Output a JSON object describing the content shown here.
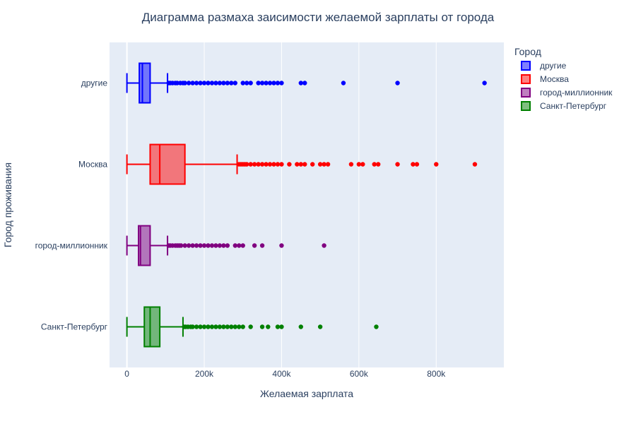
{
  "chart_data": {
    "type": "box",
    "orientation": "horizontal",
    "title": "Диаграмма размаха заисимости желаемой зарплаты от города",
    "xlabel": "Желаемая зарплата",
    "ylabel": "Город проживания",
    "xlim": [
      -45000,
      975000
    ],
    "xticks": [
      0,
      200000,
      400000,
      600000,
      800000
    ],
    "xtick_labels": [
      "0",
      "200k",
      "400k",
      "600k",
      "800k"
    ],
    "grid": true,
    "legend": {
      "title": "Город",
      "placement": "top-right"
    },
    "series": [
      {
        "name": "другие",
        "color": "#0000ff",
        "min": 0,
        "q1": 32000,
        "median": 40000,
        "q3": 60000,
        "upper_fence": 105000,
        "outliers": [
          108000,
          112000,
          118000,
          125000,
          130000,
          138000,
          145000,
          150000,
          160000,
          170000,
          180000,
          190000,
          200000,
          210000,
          220000,
          230000,
          240000,
          250000,
          260000,
          270000,
          280000,
          300000,
          310000,
          320000,
          340000,
          350000,
          360000,
          370000,
          380000,
          390000,
          400000,
          450000,
          460000,
          560000,
          700000,
          925000
        ]
      },
      {
        "name": "Москва",
        "color": "#ff0000",
        "min": 0,
        "q1": 60000,
        "median": 85000,
        "q3": 150000,
        "upper_fence": 285000,
        "outliers": [
          290000,
          295000,
          300000,
          305000,
          310000,
          320000,
          330000,
          340000,
          350000,
          360000,
          370000,
          380000,
          390000,
          400000,
          420000,
          440000,
          450000,
          460000,
          480000,
          500000,
          510000,
          520000,
          580000,
          600000,
          610000,
          640000,
          650000,
          700000,
          740000,
          750000,
          800000,
          900000
        ]
      },
      {
        "name": "город-миллионник",
        "color": "#800080",
        "min": 0,
        "q1": 30000,
        "median": 35000,
        "q3": 60000,
        "upper_fence": 105000,
        "outliers": [
          108000,
          112000,
          118000,
          125000,
          130000,
          135000,
          140000,
          150000,
          160000,
          170000,
          180000,
          190000,
          200000,
          210000,
          220000,
          230000,
          240000,
          250000,
          260000,
          280000,
          290000,
          300000,
          330000,
          350000,
          400000,
          510000
        ]
      },
      {
        "name": "Санкт-Петербург",
        "color": "#008000",
        "min": 0,
        "q1": 45000,
        "median": 60000,
        "q3": 85000,
        "upper_fence": 145000,
        "outliers": [
          148000,
          152000,
          158000,
          165000,
          170000,
          180000,
          190000,
          200000,
          210000,
          220000,
          230000,
          240000,
          250000,
          260000,
          270000,
          280000,
          290000,
          300000,
          320000,
          350000,
          365000,
          390000,
          400000,
          450000,
          500000,
          645000
        ]
      }
    ]
  }
}
